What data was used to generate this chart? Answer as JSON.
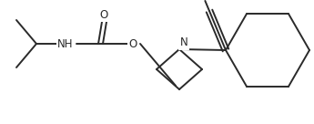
{
  "background": "#ffffff",
  "line_color": "#2a2a2a",
  "line_width": 1.4,
  "font_size": 8.5,
  "figsize": [
    3.45,
    1.36
  ],
  "dpi": 100,
  "xlim": [
    0,
    345
  ],
  "ylim": [
    0,
    136
  ]
}
